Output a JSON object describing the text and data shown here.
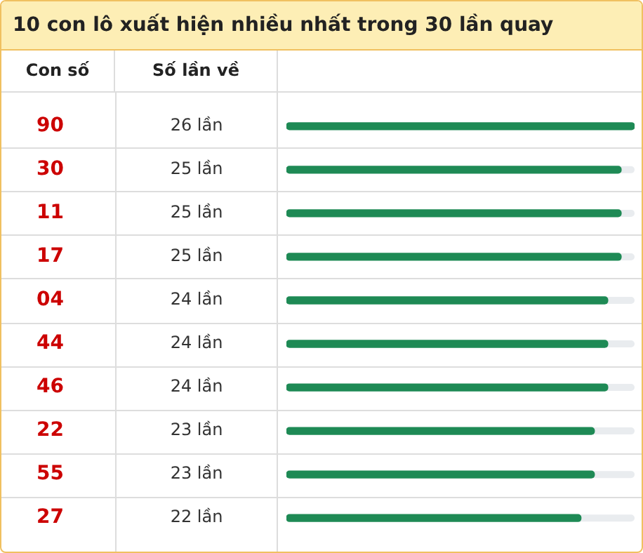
{
  "chart_data": {
    "type": "bar",
    "orientation": "horizontal",
    "title": "10 con lô xuất hiện nhiều nhất trong 30 lần quay",
    "ylabel": "Con số",
    "xlabel": "Số lần về",
    "categories": [
      "90",
      "30",
      "11",
      "17",
      "04",
      "44",
      "46",
      "22",
      "55",
      "27"
    ],
    "values": [
      26,
      25,
      25,
      25,
      24,
      24,
      24,
      23,
      23,
      22
    ],
    "value_labels": [
      "26 lần",
      "25 lần",
      "25 lần",
      "25 lần",
      "24 lần",
      "24 lần",
      "24 lần",
      "23 lần",
      "23 lần",
      "22 lần"
    ],
    "color": "#1e8a55",
    "xlim": [
      0,
      26
    ],
    "tick_labels": "y"
  }
}
